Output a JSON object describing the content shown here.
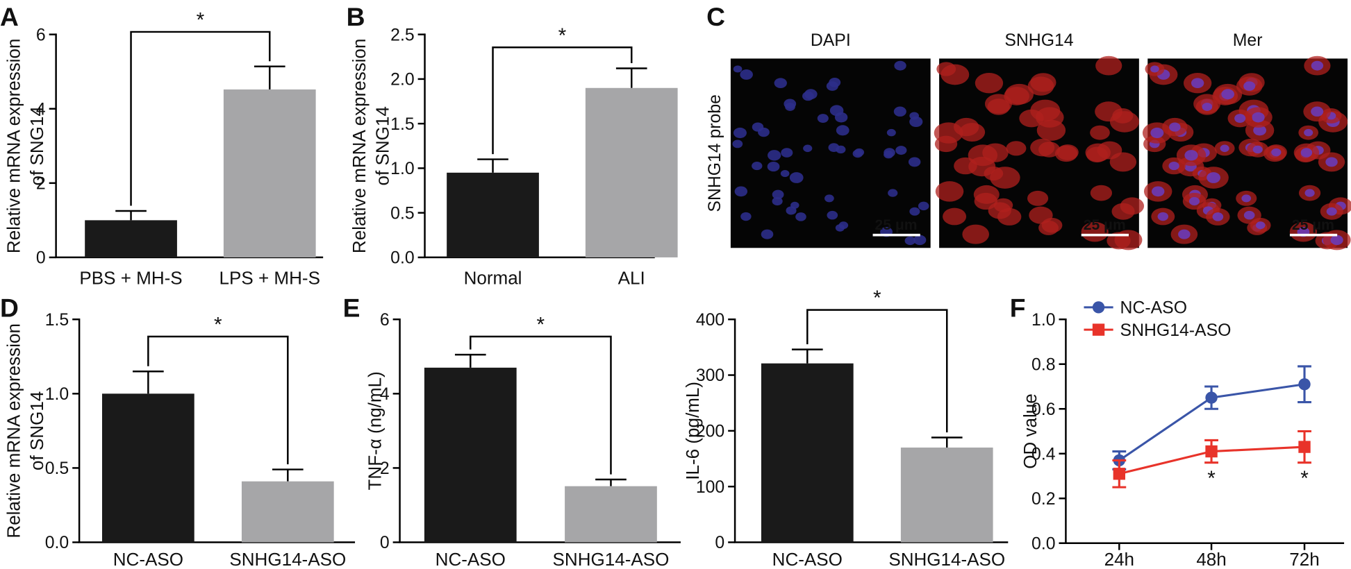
{
  "chart_data": [
    {
      "type": "bar",
      "panel": "A",
      "ylabel": [
        "Relative mRNA expression",
        "of SNG14"
      ],
      "categories": [
        "PBS + MH-S",
        "LPS + MH-S"
      ],
      "values": [
        1.0,
        4.52
      ],
      "errors": [
        0.25,
        0.62
      ],
      "colors": [
        "#1a1a1a",
        "#a6a6a8"
      ],
      "ylim": [
        0,
        6
      ],
      "yticks": [
        0,
        2,
        4,
        6
      ],
      "significance": "*"
    },
    {
      "type": "bar",
      "panel": "B",
      "ylabel": [
        "Relative mRNA expression",
        "of SNG14"
      ],
      "categories": [
        "Normal",
        "ALI"
      ],
      "values": [
        0.95,
        1.9
      ],
      "errors": [
        0.15,
        0.22
      ],
      "colors": [
        "#1a1a1a",
        "#a6a6a8"
      ],
      "ylim": [
        0,
        2.5
      ],
      "yticks": [
        {
          "value": 0,
          "label": "0.0"
        },
        0.5,
        {
          "value": 1,
          "label": "1.0"
        },
        1.5,
        {
          "value": 2,
          "label": "2.0"
        },
        2.5
      ],
      "significance": "*"
    },
    {
      "type": "bar",
      "panel": "D",
      "ylabel": [
        "Relative mRNA expression",
        "of SNG14"
      ],
      "categories": [
        "NC-ASO",
        "SNHG14-ASO"
      ],
      "values": [
        1.0,
        0.41
      ],
      "errors": [
        0.15,
        0.08
      ],
      "colors": [
        "#1a1a1a",
        "#a6a6a8"
      ],
      "ylim": [
        0,
        1.5
      ],
      "yticks": [
        {
          "value": 0,
          "label": "0.0"
        },
        0.5,
        {
          "value": 1,
          "label": "1.0"
        },
        1.5
      ],
      "significance": "*"
    },
    {
      "type": "bar",
      "panel": "E",
      "ylabel": [
        "TNF-α (ng/mL)"
      ],
      "categories": [
        "NC-ASO",
        "SNHG14-ASO"
      ],
      "values": [
        4.7,
        1.51
      ],
      "errors": [
        0.35,
        0.18
      ],
      "colors": [
        "#1a1a1a",
        "#a6a6a8"
      ],
      "ylim": [
        0,
        6
      ],
      "yticks": [
        0,
        2,
        4,
        6
      ],
      "significance": "*"
    },
    {
      "type": "bar",
      "ylabel": [
        "IL-6 (pg/mL)"
      ],
      "categories": [
        "NC-ASO",
        "SNHG14-ASO"
      ],
      "values": [
        321,
        170
      ],
      "errors": [
        25,
        18
      ],
      "colors": [
        "#1a1a1a",
        "#a6a6a8"
      ],
      "ylim": [
        0,
        400
      ],
      "yticks": [
        0,
        100,
        200,
        300,
        400
      ],
      "significance": "*"
    },
    {
      "type": "line",
      "panel": "F",
      "ylabel": [
        "OD value"
      ],
      "categories": [
        "24h",
        "48h",
        "72h"
      ],
      "series": [
        {
          "name": "NC-ASO",
          "color": "#3a55a8",
          "marker": "circle",
          "values": [
            0.37,
            0.65,
            0.71
          ],
          "errors": [
            0.04,
            0.05,
            0.08
          ]
        },
        {
          "name": "SNHG14-ASO",
          "color": "#e8332a",
          "marker": "square",
          "values": [
            0.31,
            0.41,
            0.43
          ],
          "errors": [
            0.06,
            0.05,
            0.07
          ],
          "point_labels": [
            null,
            "*",
            "*"
          ]
        }
      ],
      "ylim": [
        0,
        1
      ],
      "yticks": [
        {
          "value": 0,
          "label": "0.0"
        },
        0.2,
        0.4,
        0.6,
        0.8,
        {
          "value": 1,
          "label": "1.0"
        }
      ]
    }
  ],
  "image_panel": {
    "panel": "C",
    "columns": [
      "DAPI",
      "SNHG14",
      "Mer"
    ],
    "row_label": "SNHG14 probe",
    "scale_bar": "25 μm"
  }
}
